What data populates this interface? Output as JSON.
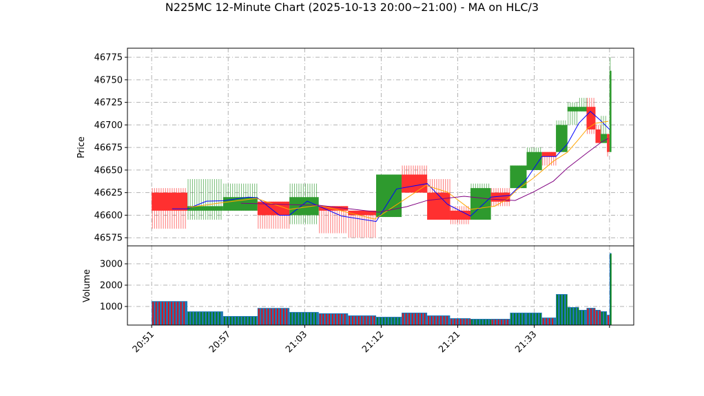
{
  "chart_data": {
    "type": "candlestick",
    "title": "N225MC 12-Minute Chart (2025-10-13 20:00~21:00) - MA on HLC/3",
    "price_panel": {
      "ylabel": "Price",
      "ylim": [
        46566,
        46785
      ],
      "yticks": [
        46575,
        46600,
        46625,
        46650,
        46675,
        46700,
        46725,
        46750,
        46775
      ],
      "grid": true
    },
    "volume_panel": {
      "ylabel": "Volume",
      "ylim": [
        130,
        3840
      ],
      "yticks": [
        1000,
        2000,
        3000
      ],
      "grid": true
    },
    "x_index_range": [
      -1.9,
      37.8
    ],
    "xticks": [
      {
        "i": 0,
        "label": "20:51"
      },
      {
        "i": 6,
        "label": "20:57"
      },
      {
        "i": 12,
        "label": "21:03"
      },
      {
        "i": 18,
        "label": "21:12"
      },
      {
        "i": 24,
        "label": "21:21"
      },
      {
        "i": 30,
        "label": "21:33"
      },
      {
        "i": 35.9,
        "label": ""
      }
    ],
    "colors": {
      "up": "#2e9a2e",
      "down": "#ff3030",
      "volume": "#1f77b4",
      "ma_short": "#0000ff",
      "ma_mid": "#ffa500",
      "ma_long": "#800080"
    },
    "candles": [
      {
        "i0": 0,
        "i1": 2.8,
        "o": 46625,
        "h": 46630,
        "l": 46585,
        "c": 46605,
        "v": 1250
      },
      {
        "i0": 2.8,
        "i1": 5.6,
        "o": 46605,
        "h": 46640,
        "l": 46595,
        "c": 46610,
        "v": 770
      },
      {
        "i0": 5.6,
        "i1": 8.3,
        "o": 46605,
        "h": 46635,
        "l": 46605,
        "c": 46620,
        "v": 550
      },
      {
        "i0": 8.3,
        "i1": 10.8,
        "o": 46615,
        "h": 46615,
        "l": 46585,
        "c": 46600,
        "v": 930
      },
      {
        "i0": 10.8,
        "i1": 13.1,
        "o": 46600,
        "h": 46635,
        "l": 46590,
        "c": 46620,
        "v": 740
      },
      {
        "i0": 13.1,
        "i1": 15.4,
        "o": 46610,
        "h": 46610,
        "l": 46580,
        "c": 46605,
        "v": 680
      },
      {
        "i0": 15.4,
        "i1": 17.6,
        "o": 46605,
        "h": 46605,
        "l": 46575,
        "c": 46600,
        "v": 580
      },
      {
        "i0": 17.6,
        "i1": 19.6,
        "o": 46598,
        "h": 46645,
        "l": 46598,
        "c": 46645,
        "v": 515
      },
      {
        "i0": 19.6,
        "i1": 21.6,
        "o": 46645,
        "h": 46655,
        "l": 46625,
        "c": 46625,
        "v": 710
      },
      {
        "i0": 21.6,
        "i1": 23.4,
        "o": 46625,
        "h": 46640,
        "l": 46595,
        "c": 46595,
        "v": 580
      },
      {
        "i0": 23.4,
        "i1": 25.0,
        "o": 46605,
        "h": 46610,
        "l": 46590,
        "c": 46595,
        "v": 450
      },
      {
        "i0": 25.0,
        "i1": 26.6,
        "o": 46595,
        "h": 46635,
        "l": 46595,
        "c": 46630,
        "v": 420
      },
      {
        "i0": 26.6,
        "i1": 28.1,
        "o": 46625,
        "h": 46630,
        "l": 46610,
        "c": 46615,
        "v": 420
      },
      {
        "i0": 28.1,
        "i1": 29.4,
        "o": 46630,
        "h": 46655,
        "l": 46630,
        "c": 46655,
        "v": 710
      },
      {
        "i0": 29.4,
        "i1": 30.6,
        "o": 46650,
        "h": 46675,
        "l": 46650,
        "c": 46670,
        "v": 710
      },
      {
        "i0": 30.6,
        "i1": 31.7,
        "o": 46670,
        "h": 46670,
        "l": 46655,
        "c": 46665,
        "v": 480
      },
      {
        "i0": 31.7,
        "i1": 32.6,
        "o": 46670,
        "h": 46705,
        "l": 46670,
        "c": 46700,
        "v": 1580
      },
      {
        "i0": 32.6,
        "i1": 33.5,
        "o": 46715,
        "h": 46725,
        "l": 46700,
        "c": 46720,
        "v": 970
      },
      {
        "i0": 33.5,
        "i1": 34.1,
        "o": 46715,
        "h": 46730,
        "l": 46715,
        "c": 46720,
        "v": 840
      },
      {
        "i0": 34.1,
        "i1": 34.8,
        "o": 46720,
        "h": 46730,
        "l": 46690,
        "c": 46695,
        "v": 935
      },
      {
        "i0": 34.8,
        "i1": 35.2,
        "o": 46695,
        "h": 46700,
        "l": 46680,
        "c": 46680,
        "v": 840
      },
      {
        "i0": 35.2,
        "i1": 35.7,
        "o": 46680,
        "h": 46710,
        "l": 46680,
        "c": 46690,
        "v": 775
      },
      {
        "i0": 35.7,
        "i1": 35.9,
        "o": 46690,
        "h": 46690,
        "l": 46665,
        "c": 46670,
        "v": 610
      },
      {
        "i0": 35.9,
        "i1": 36.05,
        "o": 46670,
        "h": 46775,
        "l": 46670,
        "c": 46760,
        "v": 3500
      }
    ],
    "series": [
      {
        "name": "MA short",
        "color_key": "ma_short",
        "points": [
          [
            1.6,
            46607
          ],
          [
            2.8,
            46607
          ],
          [
            4.3,
            46615.5
          ],
          [
            5.6,
            46616
          ],
          [
            7.6,
            46620
          ],
          [
            8.3,
            46619
          ],
          [
            10,
            46600
          ],
          [
            10.8,
            46600
          ],
          [
            12.2,
            46615.5
          ],
          [
            13.1,
            46610
          ],
          [
            14.9,
            46599
          ],
          [
            17.6,
            46593
          ],
          [
            19.2,
            46629
          ],
          [
            21.6,
            46635
          ],
          [
            23.2,
            46612
          ],
          [
            25,
            46599
          ],
          [
            26.6,
            46620
          ],
          [
            28.1,
            46622
          ],
          [
            29.4,
            46640
          ],
          [
            30.6,
            46665
          ],
          [
            31.7,
            46665
          ],
          [
            32.6,
            46679
          ],
          [
            33.5,
            46702
          ],
          [
            34.4,
            46715
          ],
          [
            35.2,
            46705
          ],
          [
            35.9,
            46695
          ]
        ]
      },
      {
        "name": "MA mid",
        "color_key": "ma_mid",
        "points": [
          [
            2.9,
            46608.6
          ],
          [
            5.6,
            46614
          ],
          [
            8.2,
            46618.6
          ],
          [
            10.8,
            46606.4
          ],
          [
            13.1,
            46611
          ],
          [
            15.5,
            46602.6
          ],
          [
            17.5,
            46595.7
          ],
          [
            21.5,
            46633
          ],
          [
            23.2,
            46625.5
          ],
          [
            25,
            46606.4
          ],
          [
            26.9,
            46610
          ],
          [
            27.9,
            46617.8
          ],
          [
            28.6,
            46627.7
          ],
          [
            29.9,
            46640.7
          ],
          [
            31.5,
            46659.8
          ],
          [
            32.6,
            46669.7
          ],
          [
            33.4,
            46682.7
          ],
          [
            34.2,
            46696.4
          ],
          [
            34.8,
            46701.8
          ],
          [
            35.8,
            46704
          ]
        ]
      },
      {
        "name": "MA long",
        "color_key": "ma_long",
        "points": [
          [
            7,
            46613.2
          ],
          [
            10.8,
            46611.7
          ],
          [
            13.1,
            46611
          ],
          [
            17.8,
            46603.3
          ],
          [
            20,
            46609.4
          ],
          [
            21.6,
            46616.3
          ],
          [
            24.5,
            46620.9
          ],
          [
            26.6,
            46617.8
          ],
          [
            28.5,
            46616.3
          ],
          [
            29.9,
            46625.5
          ],
          [
            31.5,
            46637.7
          ],
          [
            32.6,
            46652.2
          ],
          [
            34.2,
            46669.7
          ],
          [
            35.3,
            46681.2
          ],
          [
            35.8,
            46685
          ]
        ]
      }
    ]
  }
}
